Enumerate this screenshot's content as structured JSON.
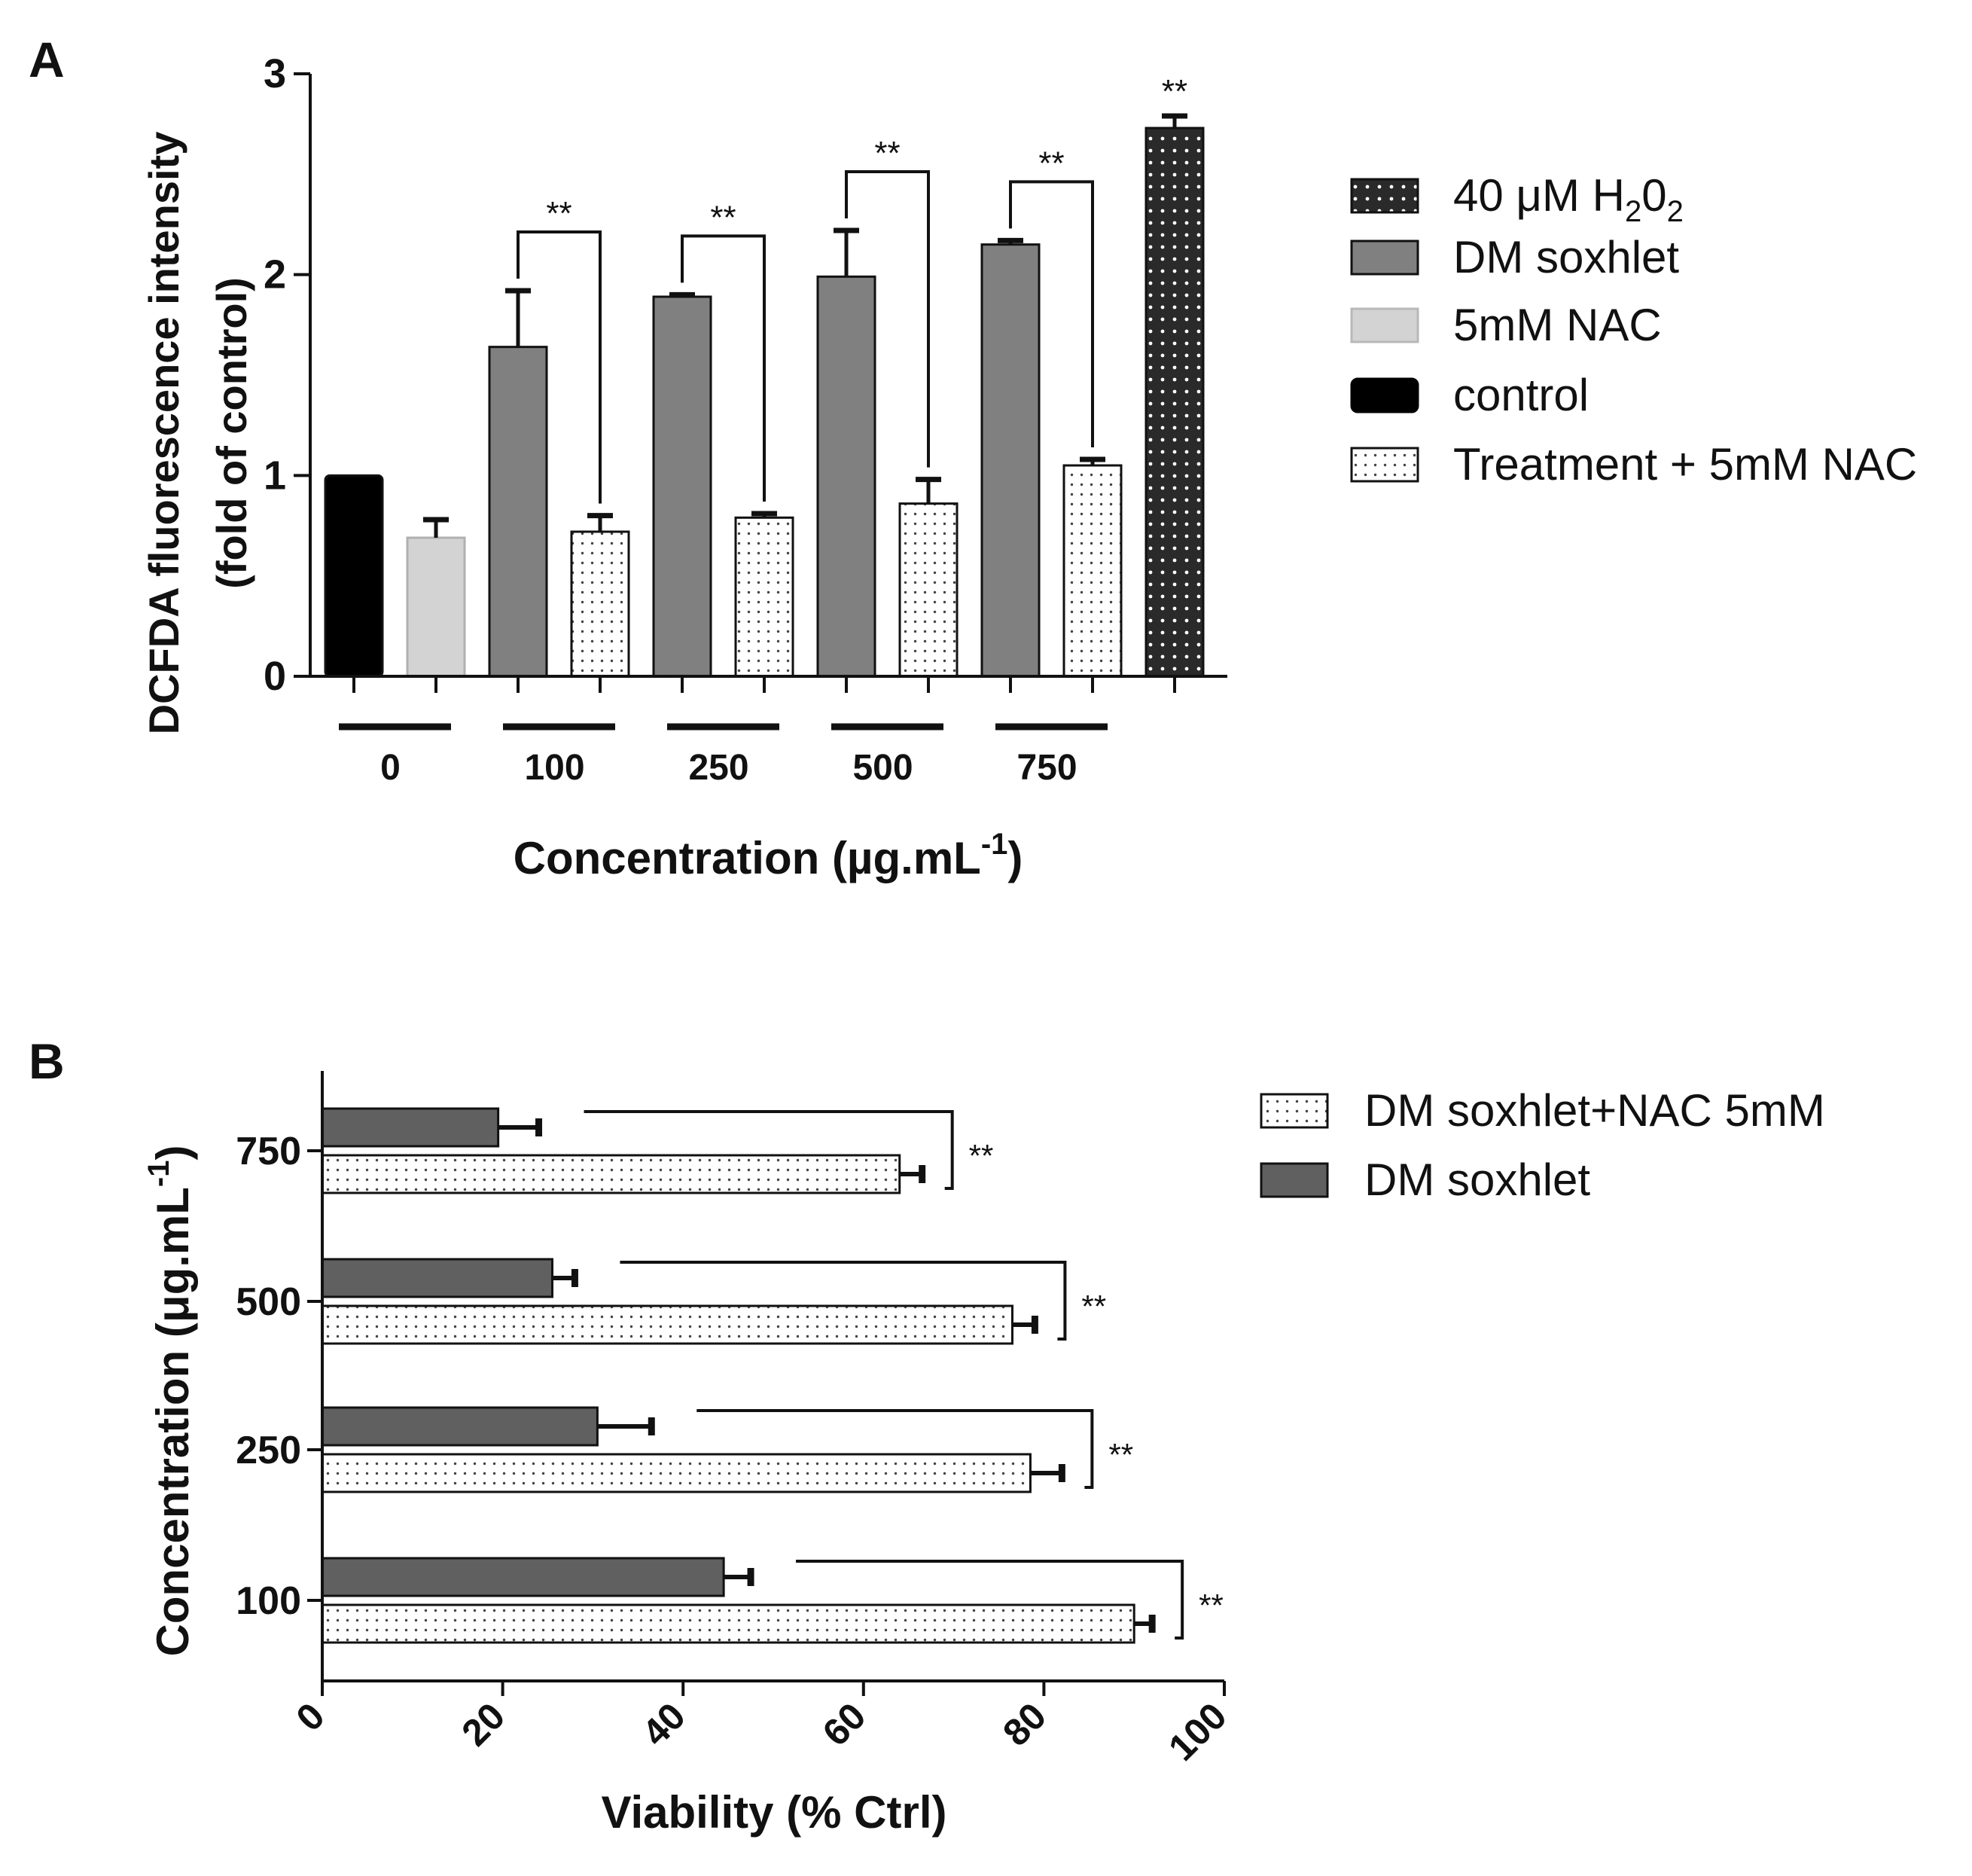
{
  "colors": {
    "h2o2": "#2a2a2a",
    "dm_soxhlet": "#808080",
    "nac": "#d3d3d3",
    "control": "#000000",
    "treatment_nac": "#ffffff",
    "axis": "#111111"
  },
  "chart_data": [
    {
      "panel": "A",
      "type": "bar",
      "title": "",
      "ylabel_line1": "DCFDA fluorescence intensity",
      "ylabel_line2": "(fold of control)",
      "xlabel_main": "Concentration (µg.mL",
      "xlabel_sup": "-1",
      "xlabel_close": ")",
      "ylim": [
        0,
        3
      ],
      "yticks": [
        "0",
        "1",
        "2",
        "3"
      ],
      "grid": false,
      "legend_position": "right",
      "legend": [
        {
          "key": "h2o2",
          "label_main": "40 μM H",
          "label_sub1": "2",
          "label_mid": "0",
          "label_sub2": "2"
        },
        {
          "key": "dm_soxhlet",
          "label": "DM soxhlet"
        },
        {
          "key": "nac",
          "label": "5mM NAC"
        },
        {
          "key": "control",
          "label": "control"
        },
        {
          "key": "treatment_nac",
          "label": "Treatment + 5mM NAC"
        }
      ],
      "groups": [
        "0",
        "100",
        "250",
        "500",
        "750"
      ],
      "bars": [
        {
          "series": "control",
          "group": "0",
          "value": 1.0,
          "error": 0.0
        },
        {
          "series": "nac",
          "group": "0",
          "value": 0.69,
          "error": 0.09
        },
        {
          "series": "dm_soxhlet",
          "group": "100",
          "value": 1.64,
          "error": 0.28
        },
        {
          "series": "treatment_nac",
          "group": "100",
          "value": 0.72,
          "error": 0.08
        },
        {
          "series": "dm_soxhlet",
          "group": "250",
          "value": 1.89,
          "error": 0.01
        },
        {
          "series": "treatment_nac",
          "group": "250",
          "value": 0.79,
          "error": 0.02
        },
        {
          "series": "dm_soxhlet",
          "group": "500",
          "value": 1.99,
          "error": 0.23
        },
        {
          "series": "treatment_nac",
          "group": "500",
          "value": 0.86,
          "error": 0.12
        },
        {
          "series": "dm_soxhlet",
          "group": "750",
          "value": 2.15,
          "error": 0.02
        },
        {
          "series": "treatment_nac",
          "group": "750",
          "value": 1.05,
          "error": 0.03
        },
        {
          "series": "h2o2",
          "group": "",
          "value": 2.73,
          "error": 0.06
        }
      ],
      "annotations": [
        {
          "type": "bracket",
          "from_bar": 2,
          "to_bar": 3,
          "label": "**"
        },
        {
          "type": "bracket",
          "from_bar": 4,
          "to_bar": 5,
          "label": "**"
        },
        {
          "type": "bracket",
          "from_bar": 6,
          "to_bar": 7,
          "label": "**"
        },
        {
          "type": "bracket",
          "from_bar": 8,
          "to_bar": 9,
          "label": "**"
        },
        {
          "type": "star",
          "bar": 10,
          "label": "**"
        }
      ]
    },
    {
      "panel": "B",
      "type": "bar",
      "orientation": "horizontal",
      "title": "",
      "xlabel": "Viability (% Ctrl)",
      "ylabel_main": "Concentration (μg.mL",
      "ylabel_sup": "-1",
      "ylabel_close": ")",
      "xlim": [
        0,
        100
      ],
      "xticks": [
        "0",
        "20",
        "40",
        "60",
        "80",
        "100"
      ],
      "grid": false,
      "legend_position": "top-right",
      "legend": [
        {
          "key": "treatment_nac",
          "label": "DM soxhlet+NAC 5mM"
        },
        {
          "key": "dm_soxhlet",
          "label": "DM soxhlet"
        }
      ],
      "categories": [
        "750",
        "500",
        "250",
        "100"
      ],
      "series": [
        {
          "name": "DM soxhlet",
          "key": "dm_soxhlet",
          "values": [
            19.5,
            25.5,
            30.5,
            44.5
          ],
          "errors": [
            4.5,
            2.5,
            6.0,
            3.0
          ]
        },
        {
          "name": "DM soxhlet+NAC 5mM",
          "key": "treatment_nac",
          "values": [
            64.0,
            76.5,
            78.5,
            90.0
          ],
          "errors": [
            2.5,
            2.5,
            3.5,
            2.0
          ]
        }
      ],
      "annotations": [
        {
          "category": "750",
          "label": "**"
        },
        {
          "category": "500",
          "label": "**"
        },
        {
          "category": "250",
          "label": "**"
        },
        {
          "category": "100",
          "label": "**"
        }
      ]
    }
  ],
  "panel_labels": {
    "a": "A",
    "b": "B"
  }
}
